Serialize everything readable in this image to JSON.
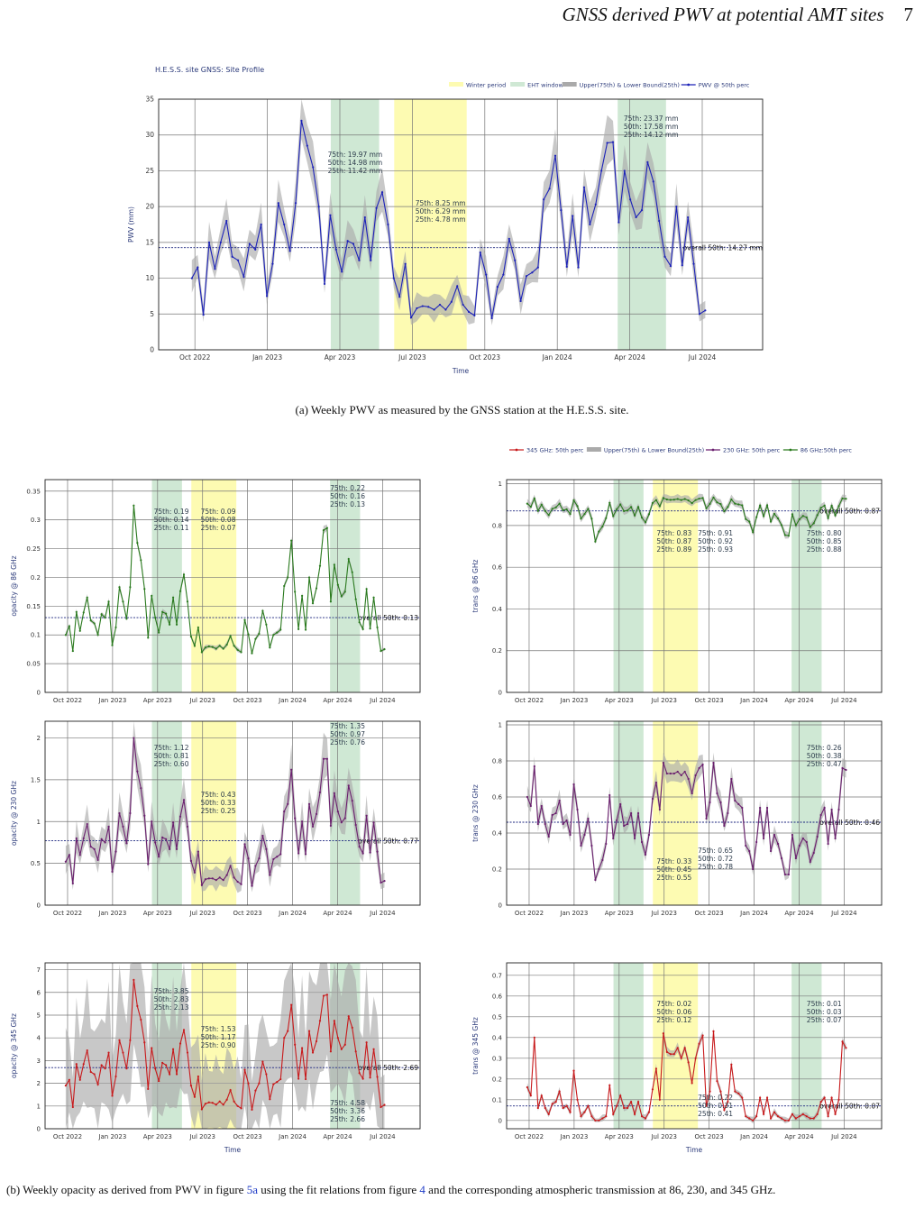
{
  "header": {
    "title": "GNSS derived PWV at potential AMT sites",
    "page_number": "7"
  },
  "caption_a": "(a) Weekly PWV as measured by the GNSS station at the H.E.S.S. site.",
  "caption_b": {
    "text1": "(b) Weekly opacity as derived from PWV in figure ",
    "ref1": "5a",
    "text2": " using the fit relations from figure ",
    "ref2": "4",
    "text3": " and the corresponding atmospheric transmission at 86, 230, and 345 GHz."
  },
  "colors": {
    "pwv": "#1c22b8",
    "g86": "#2a7a1e",
    "g230": "#6a1f6e",
    "g345": "#c8191b",
    "band": "#aaaaaa",
    "winter": "#fdfbb2",
    "eht": "#cfe8d4"
  },
  "x_ticks": [
    "Oct 2022",
    "Jan 2023",
    "Apr 2023",
    "Jul 2023",
    "Oct 2023",
    "Jan 2024",
    "Apr 2024",
    "Jul 2024"
  ],
  "chart_data": [
    {
      "type": "line",
      "title": "H.E.S.S. site GNSS: Site Profile",
      "xlabel": "Time",
      "ylabel": "PWV (mm)",
      "ylim": [
        0,
        35
      ],
      "yticks": [
        "0",
        "5",
        "10",
        "15",
        "20",
        "25",
        "30",
        "35"
      ],
      "legend": [
        "Winter period",
        "EHT window",
        "Upper(75th) & Lower Bound(25th)",
        "PWV @ 50th perc"
      ],
      "overall_label": "overall 50th: 14.27 mm",
      "overall": 14.27,
      "annotations": [
        {
          "lines": [
            "75th: 19.97 mm",
            "50th: 14.98 mm",
            "25th: 11.42 mm"
          ]
        },
        {
          "lines": [
            "75th: 8.25 mm",
            "50th: 6.29 mm",
            "25th: 4.78 mm"
          ]
        },
        {
          "lines": [
            "75th: 23.37 mm",
            "50th: 17.58 mm",
            "25th: 14.12 mm"
          ]
        }
      ],
      "series": [
        {
          "name": "PWV @ 50th perc",
          "values": [
            10,
            11.5,
            4.9,
            15,
            11.3,
            15,
            18,
            13,
            12.5,
            10.2,
            14.8,
            14,
            17.5,
            7.5,
            12,
            20.5,
            17.5,
            13.8,
            20.5,
            32,
            28.5,
            25.5,
            20,
            9.2,
            18.8,
            14,
            10.9,
            15.2,
            14.8,
            12.5,
            18.5,
            12.5,
            19.8,
            22,
            17.5,
            10,
            7.4,
            12,
            4.5,
            5.8,
            6.1,
            6,
            5.6,
            6.3,
            5.6,
            6.7,
            8.9,
            6.3,
            5.3,
            4.8,
            13.6,
            10.5,
            4.4,
            8.8,
            10.5,
            15.5,
            12.5,
            6.8,
            10.3,
            10.8,
            11.5,
            21,
            22.5,
            27.1,
            19.5,
            11.6,
            18.7,
            11.5,
            22.7,
            17.5,
            20.3,
            25,
            28.9,
            29,
            17.8,
            25,
            21,
            18.5,
            19.5,
            26.2,
            23.5,
            18,
            13,
            11.7,
            20,
            11.8,
            18.5,
            12,
            5,
            5.5
          ]
        }
      ]
    },
    {
      "type": "line",
      "ylabel": "opacity @ 86 GHz",
      "ylim": [
        0,
        0.37
      ],
      "yticks": [
        "0",
        "0.05",
        "0.1",
        "0.15",
        "0.2",
        "0.25",
        "0.3",
        "0.35"
      ],
      "overall_label": "overall 50th: 0.13",
      "overall": 0.13,
      "annotations": [
        {
          "lines": [
            "75th: 0.19",
            "50th: 0.14",
            "25th: 0.11"
          ]
        },
        {
          "lines": [
            "75th: 0.09",
            "50th: 0.08",
            "25th: 0.07"
          ]
        },
        {
          "lines": [
            "75th: 0.22",
            "50th: 0.16",
            "25th: 0.13"
          ]
        }
      ],
      "series": [
        {
          "name": "86 GHz:50th perc",
          "values": [
            0.1,
            0.115,
            0.072,
            0.14,
            0.107,
            0.139,
            0.165,
            0.125,
            0.12,
            0.1,
            0.136,
            0.13,
            0.158,
            0.082,
            0.113,
            0.183,
            0.158,
            0.128,
            0.183,
            0.325,
            0.26,
            0.23,
            0.18,
            0.095,
            0.168,
            0.13,
            0.104,
            0.14,
            0.137,
            0.118,
            0.165,
            0.118,
            0.176,
            0.205,
            0.158,
            0.097,
            0.081,
            0.113,
            0.07,
            0.078,
            0.08,
            0.079,
            0.076,
            0.081,
            0.076,
            0.083,
            0.098,
            0.081,
            0.074,
            0.07,
            0.126,
            0.101,
            0.068,
            0.093,
            0.102,
            0.142,
            0.118,
            0.078,
            0.1,
            0.104,
            0.109,
            0.185,
            0.2,
            0.264,
            0.175,
            0.11,
            0.168,
            0.109,
            0.2,
            0.155,
            0.181,
            0.22,
            0.282,
            0.286,
            0.158,
            0.222,
            0.187,
            0.167,
            0.175,
            0.232,
            0.209,
            0.162,
            0.122,
            0.11,
            0.18,
            0.111,
            0.165,
            0.113,
            0.072,
            0.075
          ]
        }
      ]
    },
    {
      "type": "line",
      "ylabel": "trans @ 86 GHz",
      "ylim": [
        0,
        1.02
      ],
      "yticks": [
        "0",
        "0.2",
        "0.4",
        "0.6",
        "0.8",
        "1"
      ],
      "legend": [
        "345 GHz: 50th perc",
        "Upper(75th) & Lower Bound(25th)",
        "230 GHz: 50th perc",
        "86 GHz:50th perc"
      ],
      "overall_label": "overall 50th: 0.87",
      "overall": 0.87,
      "annotations": [
        {
          "lines": [
            "75th: 0.83",
            "50th: 0.87",
            "25th: 0.89"
          ]
        },
        {
          "lines": [
            "75th: 0.91",
            "50th: 0.92",
            "25th: 0.93"
          ]
        },
        {
          "lines": [
            "75th: 0.80",
            "50th: 0.85",
            "25th: 0.88"
          ]
        }
      ],
      "series": [
        {
          "name": "86 GHz:50th perc",
          "values": [
            0.905,
            0.89,
            0.93,
            0.87,
            0.9,
            0.87,
            0.85,
            0.88,
            0.887,
            0.905,
            0.873,
            0.878,
            0.855,
            0.921,
            0.893,
            0.833,
            0.855,
            0.88,
            0.833,
            0.723,
            0.771,
            0.795,
            0.835,
            0.909,
            0.845,
            0.878,
            0.901,
            0.869,
            0.872,
            0.889,
            0.848,
            0.889,
            0.838,
            0.815,
            0.854,
            0.908,
            0.922,
            0.893,
            0.932,
            0.925,
            0.923,
            0.924,
            0.927,
            0.922,
            0.927,
            0.92,
            0.907,
            0.922,
            0.929,
            0.932,
            0.882,
            0.904,
            0.934,
            0.911,
            0.903,
            0.868,
            0.889,
            0.925,
            0.905,
            0.901,
            0.897,
            0.831,
            0.819,
            0.768,
            0.84,
            0.896,
            0.845,
            0.897,
            0.819,
            0.856,
            0.834,
            0.802,
            0.754,
            0.751,
            0.854,
            0.801,
            0.83,
            0.846,
            0.839,
            0.793,
            0.811,
            0.85,
            0.885,
            0.896,
            0.835,
            0.895,
            0.848,
            0.893,
            0.93,
            0.928
          ]
        }
      ]
    },
    {
      "type": "line",
      "ylabel": "opacity @ 230 GHz",
      "ylim": [
        0,
        2.2
      ],
      "yticks": [
        "0",
        "0.5",
        "1",
        "1.5",
        "2"
      ],
      "overall_label": "overall 50th: 0.77",
      "overall": 0.77,
      "annotations": [
        {
          "lines": [
            "75th: 1.12",
            "50th: 0.81",
            "25th: 0.60"
          ]
        },
        {
          "lines": [
            "75th: 0.43",
            "50th: 0.33",
            "25th: 0.25"
          ]
        },
        {
          "lines": [
            "75th: 1.35",
            "50th: 0.97",
            "25th: 0.76"
          ]
        }
      ],
      "series": [
        {
          "name": "230 GHz: 50th perc",
          "values": [
            0.52,
            0.6,
            0.26,
            0.8,
            0.6,
            0.8,
            0.97,
            0.7,
            0.67,
            0.54,
            0.79,
            0.75,
            0.94,
            0.4,
            0.64,
            1.1,
            0.94,
            0.74,
            1.1,
            2.0,
            1.6,
            1.4,
            1.07,
            0.49,
            1.0,
            0.75,
            0.58,
            0.81,
            0.79,
            0.67,
            0.99,
            0.67,
            1.06,
            1.26,
            0.94,
            0.53,
            0.39,
            0.64,
            0.24,
            0.31,
            0.32,
            0.32,
            0.3,
            0.33,
            0.3,
            0.36,
            0.47,
            0.33,
            0.28,
            0.25,
            0.73,
            0.56,
            0.23,
            0.47,
            0.56,
            0.83,
            0.67,
            0.36,
            0.55,
            0.58,
            0.61,
            1.12,
            1.21,
            1.62,
            1.04,
            0.62,
            1.0,
            0.61,
            1.21,
            0.94,
            1.09,
            1.35,
            1.75,
            1.75,
            0.95,
            1.34,
            1.12,
            0.99,
            1.04,
            1.43,
            1.25,
            0.96,
            0.7,
            0.62,
            1.07,
            0.63,
            0.99,
            0.64,
            0.27,
            0.29
          ]
        }
      ]
    },
    {
      "type": "line",
      "ylabel": "trans @ 230 GHz",
      "ylim": [
        0,
        1.02
      ],
      "yticks": [
        "0",
        "0.2",
        "0.4",
        "0.6",
        "0.8",
        "1"
      ],
      "overall_label": "overall 50th: 0.46",
      "overall": 0.46,
      "annotations": [
        {
          "lines": [
            "75th: 0.33",
            "50th: 0.45",
            "25th: 0.55"
          ]
        },
        {
          "lines": [
            "75th: 0.65",
            "50th: 0.72",
            "25th: 0.78"
          ]
        },
        {
          "lines": [
            "75th: 0.26",
            "50th: 0.38",
            "25th: 0.47"
          ]
        }
      ],
      "series": [
        {
          "name": "230 GHz: 50th perc",
          "values": [
            0.6,
            0.55,
            0.77,
            0.45,
            0.55,
            0.45,
            0.38,
            0.5,
            0.51,
            0.58,
            0.45,
            0.47,
            0.39,
            0.67,
            0.53,
            0.33,
            0.39,
            0.48,
            0.33,
            0.14,
            0.2,
            0.25,
            0.34,
            0.61,
            0.37,
            0.47,
            0.56,
            0.44,
            0.45,
            0.51,
            0.37,
            0.51,
            0.35,
            0.28,
            0.39,
            0.59,
            0.68,
            0.53,
            0.79,
            0.73,
            0.73,
            0.73,
            0.74,
            0.72,
            0.74,
            0.7,
            0.62,
            0.72,
            0.76,
            0.78,
            0.48,
            0.57,
            0.79,
            0.62,
            0.57,
            0.44,
            0.51,
            0.7,
            0.58,
            0.56,
            0.54,
            0.33,
            0.3,
            0.2,
            0.35,
            0.54,
            0.37,
            0.54,
            0.3,
            0.39,
            0.34,
            0.26,
            0.17,
            0.17,
            0.39,
            0.26,
            0.33,
            0.37,
            0.35,
            0.24,
            0.29,
            0.38,
            0.5,
            0.54,
            0.34,
            0.53,
            0.37,
            0.53,
            0.76,
            0.75
          ]
        }
      ]
    },
    {
      "type": "line",
      "xlabel": "Time",
      "ylabel": "opacity @ 345 GHz",
      "ylim": [
        0,
        7.3
      ],
      "yticks": [
        "0",
        "1",
        "2",
        "3",
        "4",
        "5",
        "6",
        "7"
      ],
      "overall_label": "overall 50th: 2.69",
      "overall": 2.69,
      "annotations": [
        {
          "lines": [
            "75th: 3.85",
            "50th: 2.83",
            "25th: 2.13"
          ]
        },
        {
          "lines": [
            "75th: 1.53",
            "50th: 1.17",
            "25th: 0.90"
          ]
        },
        {
          "lines": [
            "75th: 4.58",
            "50th: 3.36",
            "25th: 2.66"
          ]
        }
      ],
      "series": [
        {
          "name": "345 GHz: 50th perc",
          "values": [
            1.9,
            2.15,
            0.95,
            2.85,
            2.15,
            2.85,
            3.45,
            2.5,
            2.4,
            1.95,
            2.8,
            2.65,
            3.35,
            1.45,
            2.3,
            3.9,
            3.35,
            2.65,
            3.9,
            6.55,
            5.4,
            4.8,
            3.8,
            1.75,
            3.55,
            2.65,
            2.1,
            2.9,
            2.8,
            2.4,
            3.5,
            2.4,
            3.75,
            4.35,
            3.35,
            1.9,
            1.4,
            2.3,
            0.86,
            1.1,
            1.16,
            1.14,
            1.06,
            1.2,
            1.06,
            1.28,
            1.7,
            1.2,
            1.0,
            0.9,
            2.6,
            2.0,
            0.84,
            1.68,
            2.0,
            2.95,
            2.4,
            1.3,
            1.96,
            2.06,
            2.18,
            4.0,
            4.3,
            5.45,
            3.7,
            2.2,
            3.55,
            2.18,
            4.3,
            3.35,
            3.85,
            4.75,
            5.85,
            5.9,
            3.4,
            4.75,
            4.0,
            3.5,
            3.7,
            4.95,
            4.45,
            3.4,
            2.45,
            2.2,
            3.8,
            2.25,
            3.5,
            2.28,
            0.95,
            1.05
          ]
        }
      ]
    },
    {
      "type": "line",
      "xlabel": "Time",
      "ylabel": "trans @ 345 GHz",
      "ylim": [
        -0.04,
        0.76
      ],
      "yticks": [
        "0",
        "0.1",
        "0.2",
        "0.3",
        "0.4",
        "0.5",
        "0.6",
        "0.7"
      ],
      "overall_label": "overall 50th: 0.07",
      "overall": 0.07,
      "annotations": [
        {
          "lines": [
            "75th: 0.02",
            "50th: 0.06",
            "25th: 0.12"
          ]
        },
        {
          "lines": [
            "75th: 0.22",
            "50th: 0.31",
            "25th: 0.41"
          ]
        },
        {
          "lines": [
            "75th: 0.01",
            "50th: 0.03",
            "25th: 0.07"
          ]
        }
      ],
      "series": [
        {
          "name": "345 GHz: 50th perc",
          "values": [
            0.16,
            0.12,
            0.4,
            0.06,
            0.12,
            0.06,
            0.03,
            0.08,
            0.09,
            0.14,
            0.06,
            0.07,
            0.04,
            0.24,
            0.1,
            0.02,
            0.04,
            0.07,
            0.02,
            0.0,
            0.0,
            0.01,
            0.02,
            0.17,
            0.03,
            0.07,
            0.12,
            0.06,
            0.06,
            0.09,
            0.03,
            0.09,
            0.02,
            0.01,
            0.04,
            0.15,
            0.25,
            0.1,
            0.42,
            0.33,
            0.32,
            0.32,
            0.35,
            0.3,
            0.35,
            0.28,
            0.18,
            0.3,
            0.37,
            0.41,
            0.07,
            0.14,
            0.43,
            0.19,
            0.14,
            0.05,
            0.09,
            0.27,
            0.14,
            0.13,
            0.11,
            0.02,
            0.01,
            0.0,
            0.02,
            0.11,
            0.03,
            0.11,
            0.01,
            0.04,
            0.02,
            0.01,
            0.0,
            0.0,
            0.03,
            0.01,
            0.02,
            0.03,
            0.02,
            0.01,
            0.01,
            0.03,
            0.09,
            0.11,
            0.02,
            0.11,
            0.03,
            0.1,
            0.38,
            0.35
          ]
        }
      ]
    }
  ]
}
